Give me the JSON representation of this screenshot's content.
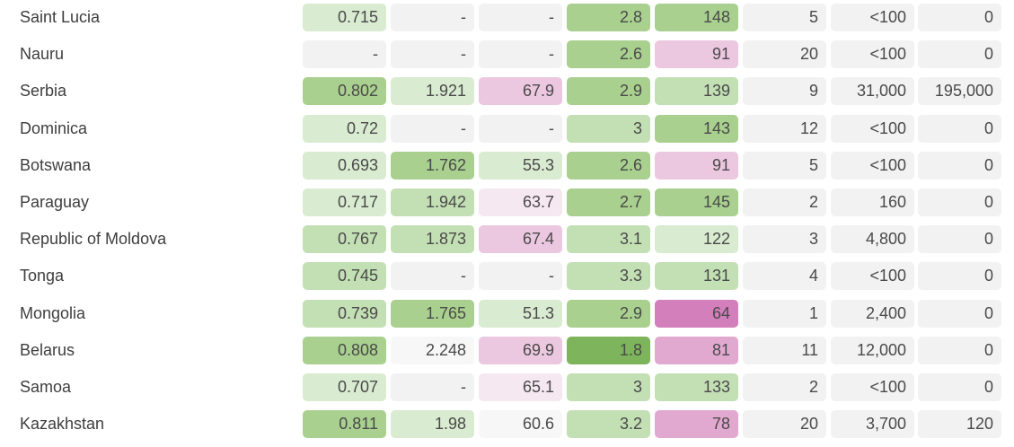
{
  "colors": {
    "empty": "#f2f2f2",
    "light_gray": "#f7f7f7",
    "green_1": "#d9ebd0",
    "green_2": "#c3dfb4",
    "green_3": "#a9d08f",
    "green_4": "#7db45c",
    "pink_1": "#f5e8f0",
    "pink_2": "#ebc8e0",
    "pink_3": "#e1a9d0",
    "pink_4": "#d27fbb"
  },
  "rows": [
    {
      "country": "Saint Lucia",
      "cells": [
        {
          "v": "0.715",
          "c": "green_1"
        },
        {
          "v": "-",
          "c": "empty"
        },
        {
          "v": "-",
          "c": "empty"
        },
        {
          "v": "2.8",
          "c": "green_3"
        },
        {
          "v": "148",
          "c": "green_3"
        },
        {
          "v": "5",
          "c": "empty"
        },
        {
          "v": "<100",
          "c": "empty"
        },
        {
          "v": "0",
          "c": "empty"
        }
      ]
    },
    {
      "country": "Nauru",
      "cells": [
        {
          "v": "-",
          "c": "empty"
        },
        {
          "v": "-",
          "c": "empty"
        },
        {
          "v": "-",
          "c": "empty"
        },
        {
          "v": "2.6",
          "c": "green_3"
        },
        {
          "v": "91",
          "c": "pink_2"
        },
        {
          "v": "20",
          "c": "empty"
        },
        {
          "v": "<100",
          "c": "empty"
        },
        {
          "v": "0",
          "c": "empty"
        }
      ]
    },
    {
      "country": "Serbia",
      "cells": [
        {
          "v": "0.802",
          "c": "green_3"
        },
        {
          "v": "1.921",
          "c": "green_1"
        },
        {
          "v": "67.9",
          "c": "pink_2"
        },
        {
          "v": "2.9",
          "c": "green_3"
        },
        {
          "v": "139",
          "c": "green_2"
        },
        {
          "v": "9",
          "c": "empty"
        },
        {
          "v": "31,000",
          "c": "empty"
        },
        {
          "v": "195,000",
          "c": "empty"
        }
      ]
    },
    {
      "country": "Dominica",
      "cells": [
        {
          "v": "0.72",
          "c": "green_1"
        },
        {
          "v": "-",
          "c": "empty"
        },
        {
          "v": "-",
          "c": "empty"
        },
        {
          "v": "3",
          "c": "green_2"
        },
        {
          "v": "143",
          "c": "green_3"
        },
        {
          "v": "12",
          "c": "empty"
        },
        {
          "v": "<100",
          "c": "empty"
        },
        {
          "v": "0",
          "c": "empty"
        }
      ]
    },
    {
      "country": "Botswana",
      "cells": [
        {
          "v": "0.693",
          "c": "green_1"
        },
        {
          "v": "1.762",
          "c": "green_3"
        },
        {
          "v": "55.3",
          "c": "green_1"
        },
        {
          "v": "2.6",
          "c": "green_3"
        },
        {
          "v": "91",
          "c": "pink_2"
        },
        {
          "v": "5",
          "c": "empty"
        },
        {
          "v": "<100",
          "c": "empty"
        },
        {
          "v": "0",
          "c": "empty"
        }
      ]
    },
    {
      "country": "Paraguay",
      "cells": [
        {
          "v": "0.717",
          "c": "green_1"
        },
        {
          "v": "1.942",
          "c": "green_2"
        },
        {
          "v": "63.7",
          "c": "pink_1"
        },
        {
          "v": "2.7",
          "c": "green_3"
        },
        {
          "v": "145",
          "c": "green_3"
        },
        {
          "v": "2",
          "c": "empty"
        },
        {
          "v": "160",
          "c": "empty"
        },
        {
          "v": "0",
          "c": "empty"
        }
      ]
    },
    {
      "country": "Republic of Moldova",
      "cells": [
        {
          "v": "0.767",
          "c": "green_2"
        },
        {
          "v": "1.873",
          "c": "green_2"
        },
        {
          "v": "67.4",
          "c": "pink_2"
        },
        {
          "v": "3.1",
          "c": "green_2"
        },
        {
          "v": "122",
          "c": "green_1"
        },
        {
          "v": "3",
          "c": "empty"
        },
        {
          "v": "4,800",
          "c": "empty"
        },
        {
          "v": "0",
          "c": "empty"
        }
      ]
    },
    {
      "country": "Tonga",
      "cells": [
        {
          "v": "0.745",
          "c": "green_2"
        },
        {
          "v": "-",
          "c": "empty"
        },
        {
          "v": "-",
          "c": "empty"
        },
        {
          "v": "3.3",
          "c": "green_2"
        },
        {
          "v": "131",
          "c": "green_2"
        },
        {
          "v": "4",
          "c": "empty"
        },
        {
          "v": "<100",
          "c": "empty"
        },
        {
          "v": "0",
          "c": "empty"
        }
      ]
    },
    {
      "country": "Mongolia",
      "cells": [
        {
          "v": "0.739",
          "c": "green_2"
        },
        {
          "v": "1.765",
          "c": "green_3"
        },
        {
          "v": "51.3",
          "c": "green_1"
        },
        {
          "v": "2.9",
          "c": "green_3"
        },
        {
          "v": "64",
          "c": "pink_4"
        },
        {
          "v": "1",
          "c": "empty"
        },
        {
          "v": "2,400",
          "c": "empty"
        },
        {
          "v": "0",
          "c": "empty"
        }
      ]
    },
    {
      "country": "Belarus",
      "cells": [
        {
          "v": "0.808",
          "c": "green_3"
        },
        {
          "v": "2.248",
          "c": "light_gray"
        },
        {
          "v": "69.9",
          "c": "pink_2"
        },
        {
          "v": "1.8",
          "c": "green_4"
        },
        {
          "v": "81",
          "c": "pink_3"
        },
        {
          "v": "11",
          "c": "empty"
        },
        {
          "v": "12,000",
          "c": "empty"
        },
        {
          "v": "0",
          "c": "empty"
        }
      ]
    },
    {
      "country": "Samoa",
      "cells": [
        {
          "v": "0.707",
          "c": "green_1"
        },
        {
          "v": "-",
          "c": "empty"
        },
        {
          "v": "65.1",
          "c": "pink_1"
        },
        {
          "v": "3",
          "c": "green_2"
        },
        {
          "v": "133",
          "c": "green_2"
        },
        {
          "v": "2",
          "c": "empty"
        },
        {
          "v": "<100",
          "c": "empty"
        },
        {
          "v": "0",
          "c": "empty"
        }
      ]
    },
    {
      "country": "Kazakhstan",
      "cells": [
        {
          "v": "0.811",
          "c": "green_3"
        },
        {
          "v": "1.98",
          "c": "green_1"
        },
        {
          "v": "60.6",
          "c": "light_gray"
        },
        {
          "v": "3.2",
          "c": "green_2"
        },
        {
          "v": "78",
          "c": "pink_3"
        },
        {
          "v": "20",
          "c": "empty"
        },
        {
          "v": "3,700",
          "c": "empty"
        },
        {
          "v": "120",
          "c": "empty"
        }
      ]
    }
  ]
}
